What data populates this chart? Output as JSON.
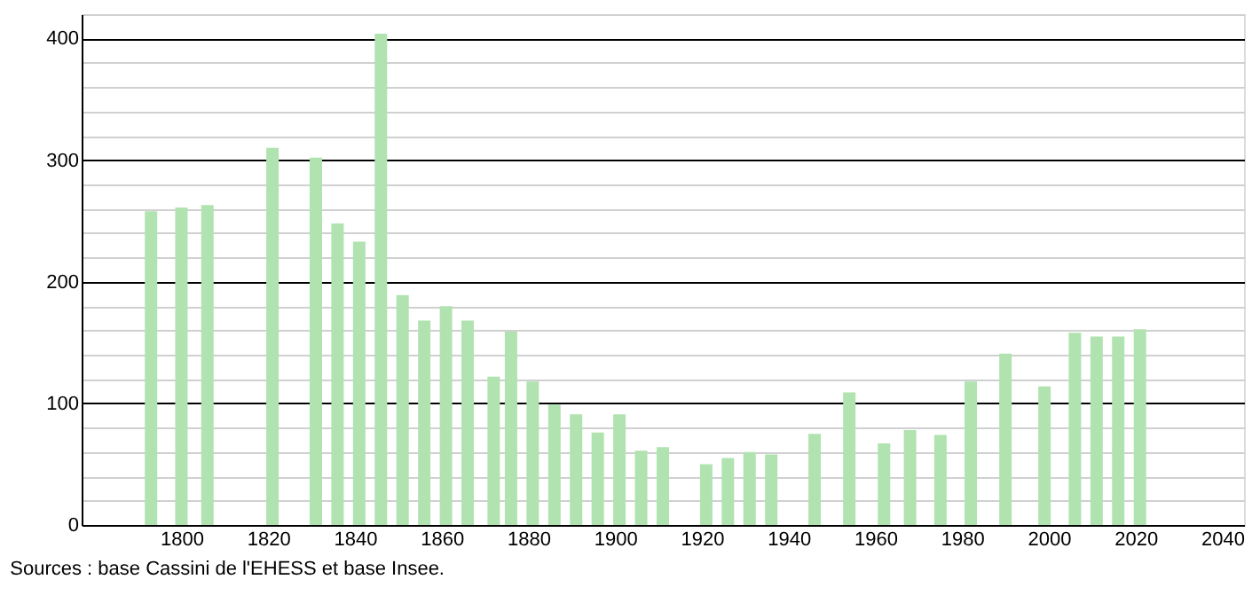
{
  "chart_data": {
    "type": "bar",
    "x": [
      1793,
      1800,
      1806,
      1821,
      1831,
      1836,
      1841,
      1846,
      1851,
      1856,
      1861,
      1866,
      1872,
      1876,
      1881,
      1886,
      1891,
      1896,
      1901,
      1906,
      1911,
      1921,
      1926,
      1931,
      1936,
      1946,
      1954,
      1962,
      1968,
      1975,
      1982,
      1990,
      1999,
      2006,
      2011,
      2016,
      2021
    ],
    "values": [
      258,
      261,
      263,
      310,
      302,
      248,
      233,
      404,
      189,
      168,
      180,
      168,
      122,
      159,
      118,
      99,
      91,
      76,
      91,
      61,
      64,
      50,
      55,
      60,
      58,
      75,
      109,
      67,
      78,
      74,
      118,
      141,
      114,
      158,
      155,
      155,
      161
    ],
    "color": "#b0e3b0",
    "xlim": [
      1777,
      2045
    ],
    "xticks": [
      1800,
      1820,
      1840,
      1860,
      1880,
      1900,
      1920,
      1940,
      1960,
      1980,
      2000,
      2020,
      2040
    ],
    "ylim": [
      0,
      420
    ],
    "yticks": [
      0,
      {
        "value": 20,
        "label": null
      },
      {
        "value": 40,
        "label": null
      },
      {
        "value": 60,
        "label": null
      },
      {
        "value": 80,
        "label": null
      },
      100,
      {
        "value": 120,
        "label": null
      },
      {
        "value": 140,
        "label": null
      },
      {
        "value": 160,
        "label": null
      },
      {
        "value": 180,
        "label": null
      },
      200,
      {
        "value": 220,
        "label": null
      },
      {
        "value": 240,
        "label": null
      },
      {
        "value": 260,
        "label": null
      },
      {
        "value": 280,
        "label": null
      },
      300,
      {
        "value": 320,
        "label": null
      },
      {
        "value": 340,
        "label": null
      },
      {
        "value": 360,
        "label": null
      },
      {
        "value": 380,
        "label": null
      },
      400,
      {
        "value": 420,
        "label": null
      }
    ],
    "grid": "y",
    "legend": false,
    "annotations": [
      "Sources : base Cassini de l'EHESS et base Insee."
    ]
  }
}
